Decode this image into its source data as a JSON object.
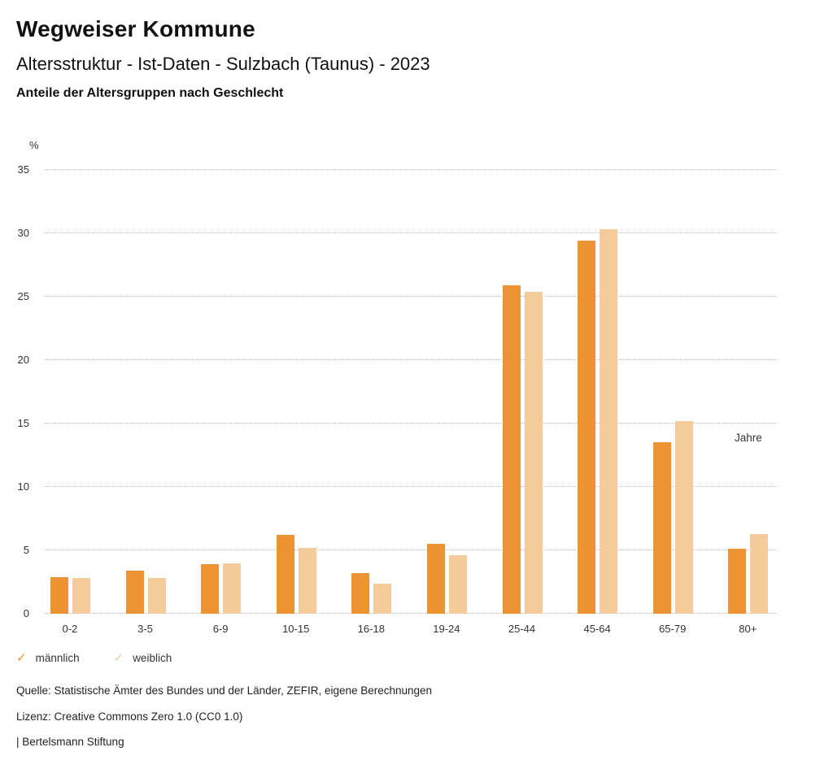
{
  "header": {
    "title": "Wegweiser Kommune",
    "subtitle": "Altersstruktur - Ist-Daten - Sulzbach (Taunus) - 2023",
    "heading": "Anteile der Altersgruppen nach Geschlecht"
  },
  "chart_data": {
    "type": "bar",
    "title": "Anteile der Altersgruppen nach Geschlecht",
    "ylabel": "%",
    "xlabel": "Jahre",
    "categories": [
      "0-2",
      "3-5",
      "6-9",
      "10-15",
      "16-18",
      "19-24",
      "25-44",
      "45-64",
      "65-79",
      "80+"
    ],
    "series": [
      {
        "key": "maennlich",
        "name": "männlich",
        "color": "#ec9434",
        "values": [
          2.9,
          3.4,
          3.9,
          6.2,
          3.2,
          5.5,
          25.9,
          29.4,
          13.5,
          5.1
        ]
      },
      {
        "key": "weiblich",
        "name": "weiblich",
        "color": "#f5cb9b",
        "values": [
          2.8,
          2.8,
          4.0,
          5.2,
          2.4,
          4.6,
          25.4,
          30.3,
          15.2,
          6.3
        ]
      }
    ],
    "ylim": [
      0,
      35
    ],
    "ytick_step": 5,
    "grid": "horizontal-dotted",
    "legend_position": "bottom-left",
    "legend_check_icon": "✓"
  },
  "footer": {
    "lines": [
      "Quelle: Statistische Ämter des Bundes und der Länder, ZEFIR, eigene Berechnungen",
      "Lizenz: Creative Commons Zero 1.0 (CC0 1.0)",
      "| Bertelsmann Stiftung"
    ]
  }
}
